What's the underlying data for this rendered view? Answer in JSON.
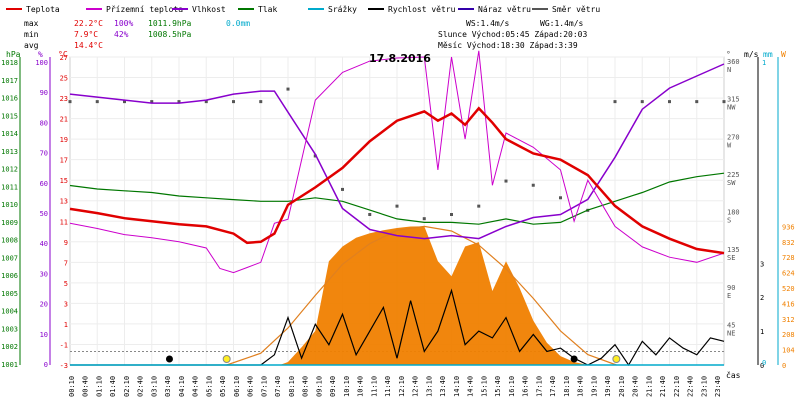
{
  "chart_data": {
    "type": "line",
    "title": "17.8.2016",
    "legend": [
      {
        "name": "Teplota",
        "color": "#e00000"
      },
      {
        "name": "Přízemní teplota",
        "color": "#cc00cc"
      },
      {
        "name": "Vlhkost",
        "color": "#8800cc"
      },
      {
        "name": "Tlak",
        "color": "#007700"
      },
      {
        "name": "Srážky",
        "color": "#00aacc"
      },
      {
        "name": "Rychlost větru",
        "color": "#000000"
      },
      {
        "name": "Náraz větru",
        "color": "#3300aa"
      },
      {
        "name": "Směr větru",
        "color": "#555555"
      }
    ],
    "stats": {
      "max": {
        "label": "max",
        "temp": "22.2°C",
        "hum": "100%",
        "press": "1011.9hPa",
        "rain": "0.0mm"
      },
      "min": {
        "label": "min",
        "temp": "7.9°C",
        "hum": "42%",
        "press": "1008.5hPa"
      },
      "avg": {
        "label": "avg",
        "temp": "14.4°C"
      },
      "ws": "WS:1.4m/s",
      "wg": "WG:1.4m/s",
      "sun": "Slunce Východ:05:45  Západ:20:03",
      "moon": "Měsíc  Východ:18:30  Západ:3:39"
    },
    "axes": {
      "hpa_label": "hPa",
      "pct_label": "%",
      "c_label": "°C",
      "deg_label": "°",
      "ms_label": "m/s",
      "mm_label": "mm",
      "w_label": "W",
      "time_label": "čas",
      "hpa_ticks": [
        "1018",
        "1017",
        "1016",
        "1015",
        "1014",
        "1013",
        "1012",
        "1011",
        "1010",
        "1009",
        "1008",
        "1007",
        "1006",
        "1005",
        "1004",
        "1003",
        "1002",
        "1001"
      ],
      "pct_ticks": [
        "100",
        "90",
        "80",
        "70",
        "60",
        "50",
        "40",
        "30",
        "20",
        "10",
        "0"
      ],
      "c_ticks": [
        "27",
        "25",
        "23",
        "21",
        "19",
        "17",
        "15",
        "13",
        "11",
        "9",
        "7",
        "5",
        "3",
        "1",
        "-1",
        "-3"
      ],
      "dir_ticks": [
        {
          "deg": "360",
          "dir": "N"
        },
        {
          "deg": "315",
          "dir": "NW"
        },
        {
          "deg": "270",
          "dir": "W"
        },
        {
          "deg": "225",
          "dir": "SW"
        },
        {
          "deg": "180",
          "dir": "S"
        },
        {
          "deg": "135",
          "dir": "SE"
        },
        {
          "deg": "90",
          "dir": "E"
        },
        {
          "deg": "45",
          "dir": "NE"
        }
      ],
      "ms_ticks": [
        "~3",
        "~2",
        "~1",
        "0"
      ],
      "mm_ticks": [
        "~1",
        "0"
      ],
      "w_ticks": [
        "936",
        "832",
        "728",
        "624",
        "520",
        "416",
        "312",
        "208",
        "104",
        "0"
      ],
      "time_ticks": [
        "00:10",
        "00:40",
        "01:10",
        "01:40",
        "02:10",
        "02:40",
        "03:10",
        "03:40",
        "04:10",
        "04:40",
        "05:10",
        "05:40",
        "06:10",
        "06:40",
        "07:10",
        "07:40",
        "08:10",
        "08:40",
        "09:10",
        "09:40",
        "10:10",
        "10:40",
        "11:10",
        "11:40",
        "12:10",
        "12:40",
        "13:10",
        "13:40",
        "14:10",
        "14:40",
        "15:10",
        "15:40",
        "16:10",
        "16:40",
        "17:10",
        "17:40",
        "18:10",
        "18:40",
        "19:10",
        "19:40",
        "20:10",
        "20:40",
        "21:10",
        "21:40",
        "22:10",
        "22:40",
        "23:10",
        "23:40"
      ]
    },
    "series": [
      {
        "name": "Teplota",
        "unit": "°C",
        "color": "#e00000",
        "x": [
          0,
          1,
          2,
          3,
          4,
          5,
          6,
          6.5,
          7,
          7.5,
          8,
          9,
          10,
          11,
          12,
          13,
          13.5,
          14,
          14.5,
          15,
          15.5,
          16,
          17,
          18,
          19,
          20,
          21,
          22,
          23,
          24
        ],
        "y": [
          12.2,
          11.8,
          11.3,
          11.0,
          10.7,
          10.5,
          9.8,
          8.9,
          9.0,
          9.8,
          12.6,
          14.3,
          16.2,
          18.8,
          20.8,
          21.7,
          20.8,
          21.5,
          20.4,
          22.0,
          20.6,
          19.0,
          17.6,
          17.0,
          15.5,
          12.5,
          10.5,
          9.3,
          8.3,
          7.9
        ]
      },
      {
        "name": "Přízemní teplota",
        "unit": "°C",
        "color": "#cc00cc",
        "x": [
          0,
          1,
          2,
          3,
          4,
          5,
          5.5,
          6,
          6.5,
          7,
          7.5,
          8,
          9,
          10,
          11,
          12,
          13,
          13.5,
          14,
          14.5,
          15,
          15.5,
          16,
          17,
          18,
          18.5,
          19,
          20,
          21,
          22,
          23,
          24
        ],
        "y": [
          10.8,
          10.3,
          9.7,
          9.4,
          9.0,
          8.4,
          6.4,
          6.0,
          6.5,
          7.0,
          10.8,
          11.2,
          22.8,
          25.5,
          26.6,
          26.9,
          27.0,
          16.0,
          27.0,
          19.0,
          27.6,
          14.5,
          19.6,
          18.2,
          16.0,
          11.0,
          15.0,
          10.5,
          8.5,
          7.5,
          7.0,
          7.9
        ]
      },
      {
        "name": "Vlhkost",
        "unit": "%",
        "color": "#8800cc",
        "x": [
          0,
          1,
          2,
          3,
          4,
          5,
          6,
          7,
          7.5,
          8,
          9,
          10,
          11,
          12,
          13,
          14,
          15,
          16,
          17,
          18,
          19,
          20,
          21,
          22,
          23,
          24
        ],
        "y": [
          90,
          89,
          88,
          87,
          87,
          88,
          90,
          91,
          91,
          84,
          70,
          52,
          45,
          43,
          42,
          43,
          42,
          46,
          49,
          50,
          55,
          69,
          85,
          92,
          96,
          100
        ]
      },
      {
        "name": "Tlak",
        "unit": "hPa",
        "color": "#007700",
        "x": [
          0,
          1,
          2,
          3,
          4,
          5,
          6,
          7,
          8,
          9,
          10,
          11,
          12,
          13,
          14,
          15,
          16,
          17,
          18,
          19,
          20,
          21,
          22,
          23,
          24
        ],
        "y": [
          1011.2,
          1011.0,
          1010.9,
          1010.8,
          1010.6,
          1010.5,
          1010.4,
          1010.3,
          1010.3,
          1010.5,
          1010.3,
          1009.8,
          1009.3,
          1009.1,
          1009.1,
          1009.0,
          1009.3,
          1009.0,
          1009.1,
          1009.8,
          1010.3,
          1010.8,
          1011.4,
          1011.7,
          1011.9
        ]
      },
      {
        "name": "Srážky",
        "unit": "mm",
        "color": "#00aacc",
        "x": [
          0,
          24
        ],
        "y": [
          0,
          0
        ]
      },
      {
        "name": "Rychlost větru",
        "unit": "m/s",
        "color": "#000000",
        "x": [
          0,
          7,
          7.5,
          8,
          8.5,
          9,
          9.5,
          10,
          10.5,
          11,
          11.5,
          12,
          12.5,
          13,
          13.5,
          14,
          14.5,
          15,
          15.5,
          16,
          16.5,
          17,
          17.5,
          18,
          18.5,
          19,
          19.5,
          20,
          20.5,
          21,
          21.5,
          22,
          22.5,
          23,
          23.5,
          24
        ],
        "y": [
          0,
          0,
          0.3,
          1.4,
          0.2,
          1.2,
          0.6,
          1.5,
          0.3,
          1.0,
          1.7,
          0.2,
          1.9,
          0.4,
          1.0,
          2.2,
          0.6,
          1.0,
          0.8,
          1.4,
          0.4,
          0.9,
          0.4,
          0.5,
          0.2,
          0.0,
          0.2,
          0.6,
          0.0,
          0.7,
          0.3,
          0.8,
          0.5,
          0.3,
          0.8,
          0.7
        ]
      },
      {
        "name": "Směr větru",
        "unit": "°",
        "color": "#555555",
        "x": [
          0,
          1,
          2,
          3,
          4,
          5,
          6,
          7,
          8,
          9,
          10,
          11,
          12,
          13,
          14,
          15,
          16,
          17,
          18,
          19,
          20,
          21,
          22,
          23,
          24
        ],
        "y": [
          315,
          315,
          315,
          315,
          315,
          315,
          315,
          315,
          330,
          250,
          210,
          180,
          190,
          175,
          180,
          190,
          220,
          215,
          200,
          185,
          315,
          315,
          315,
          315,
          315
        ]
      },
      {
        "name": "Sluneční záření",
        "unit": "W",
        "color": "#f08000",
        "x": [
          0,
          7.7,
          8,
          8.5,
          9,
          9.5,
          10,
          10.5,
          11,
          11.5,
          12,
          12.5,
          13,
          13.5,
          14,
          14.5,
          15,
          15.5,
          16,
          16.5,
          17,
          17.5,
          18,
          18.5,
          19,
          24
        ],
        "y": [
          0,
          0,
          20,
          120,
          230,
          700,
          800,
          860,
          890,
          910,
          925,
          935,
          936,
          700,
          600,
          800,
          830,
          500,
          700,
          520,
          300,
          150,
          60,
          20,
          0,
          0
        ]
      },
      {
        "name": "Teoretické záření",
        "unit": "W",
        "color": "#f08000",
        "x": [
          5.75,
          7,
          8,
          9,
          10,
          11,
          12,
          13,
          14,
          15,
          16,
          17,
          18,
          19,
          20.05
        ],
        "y": [
          0,
          80,
          250,
          470,
          680,
          820,
          910,
          936,
          905,
          810,
          650,
          450,
          230,
          70,
          0
        ]
      }
    ],
    "markers": {
      "sunrise": "05:45",
      "sunset": "20:03",
      "moonrise": "18:30",
      "moonset": "3:39"
    }
  }
}
